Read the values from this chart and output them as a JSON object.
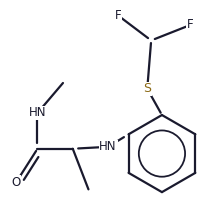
{
  "bg_color": "#ffffff",
  "line_color": "#1a1a2e",
  "s_color": "#8B6914",
  "o_color": "#1a1a2e",
  "bond_lw": 1.6,
  "font_size": 8.5,
  "figsize": [
    2.21,
    2.24
  ],
  "dpi": 100,
  "xlim": [
    0.0,
    1.0
  ],
  "ylim": [
    0.0,
    1.0
  ]
}
